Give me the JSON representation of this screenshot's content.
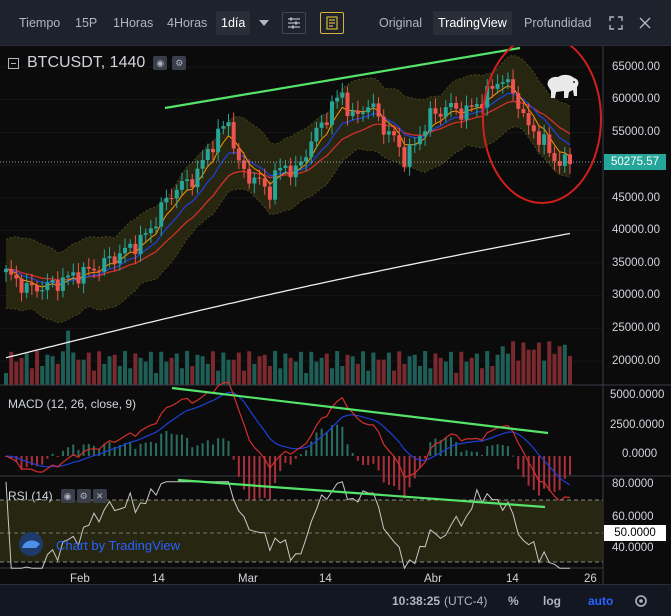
{
  "toolbar": {
    "time_label": "Tiempo",
    "intervals": [
      "15P",
      "1Horas",
      "4Horas",
      "1día"
    ],
    "active_interval": "1día",
    "view_modes": [
      "Original",
      "TradingView",
      "Profundidad"
    ],
    "active_view": "TradingView"
  },
  "legend": {
    "symbol": "BTCUSDT, 1440",
    "macd": "MACD (12, 26, close, 9)",
    "rsi": "RSI (14)"
  },
  "price_axis": {
    "labels": [
      "65000.00",
      "60000.00",
      "55000.00",
      "50275.57",
      "45000.00",
      "40000.00",
      "35000.00",
      "30000.00",
      "25000.00",
      "20000.00"
    ],
    "current_price": "50275.57"
  },
  "macd_axis": {
    "labels": [
      "5000.0000",
      "2500.0000",
      "0.0000"
    ]
  },
  "rsi_axis": {
    "labels": [
      "80.0000",
      "60.0000",
      "50.0000",
      "40.0000"
    ],
    "tag": "50.0000"
  },
  "time_axis": {
    "labels": [
      "Feb",
      "14",
      "Mar",
      "14",
      "Abr",
      "14",
      "26"
    ]
  },
  "watermark": {
    "text": "Chart by TradingView"
  },
  "statusbar": {
    "clock": "10:38:25",
    "timezone": "(UTC-4)",
    "percent": "%",
    "log": "log",
    "auto": "auto"
  },
  "colors": {
    "up": "#26a69a",
    "down": "#ef5350",
    "trendline": "#55e36a",
    "annotation_circle": "#d0201e",
    "sma_long": "#ffffff",
    "ema_fast": "#ff9800",
    "ema_slow": "#1e3fd8",
    "ema_mid": "#d32f2f",
    "accent": "#2962ff"
  },
  "icons": [
    "dropdown-arrow-icon",
    "settings-sliders-icon",
    "notes-icon",
    "fullscreen-icon",
    "close-icon",
    "bear-icon",
    "tradingview-logo-icon"
  ]
}
